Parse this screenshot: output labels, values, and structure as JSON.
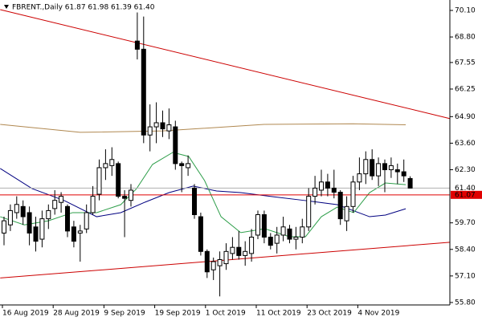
{
  "chart_data": {
    "type": "candlestick",
    "title": "FBRENT.,Daily  61.87 61.98 61.39 61.40",
    "categories": [
      "16 Aug 2019",
      null,
      null,
      null,
      null,
      null,
      null,
      null,
      "28 Aug 2019",
      null,
      null,
      null,
      null,
      null,
      null,
      null,
      "9 Sep 2019",
      null,
      null,
      null,
      null,
      null,
      null,
      null,
      "19 Sep 2019",
      null,
      null,
      null,
      null,
      null,
      null,
      null,
      "1 Oct 2019",
      null,
      null,
      null,
      null,
      null,
      null,
      null,
      "11 Oct 2019",
      null,
      null,
      null,
      null,
      null,
      null,
      null,
      "23 Oct 2019",
      null,
      null,
      null,
      null,
      null,
      null,
      null,
      "4 Nov 2019",
      null,
      null,
      null,
      null,
      null,
      null,
      null,
      null
    ],
    "open": [
      59.2,
      59.6,
      60.2,
      60.5,
      60.2,
      59.5,
      58.9,
      59.9,
      60.4,
      60.7,
      60.5,
      59.5,
      59.2,
      59.4,
      60.2,
      61.1,
      62.4,
      62.5,
      62.6,
      61.0,
      60.8,
      68.6,
      68.2,
      64.0,
      64.4,
      64.6,
      64.2,
      64.4,
      62.6,
      62.4,
      61.4,
      60.0,
      58.3,
      57.4,
      57.6,
      57.7,
      58.2,
      58.5,
      58.1,
      58.2,
      59.1,
      60.1,
      59.0,
      58.7,
      59.1,
      59.4,
      58.9,
      59.0,
      59.5,
      61.0,
      61.3,
      61.7,
      61.4,
      61.2,
      59.8,
      60.5,
      61.7,
      62.1,
      62.8,
      62.0,
      62.6,
      62.3,
      62.3,
      62.2,
      61.87
    ],
    "high": [
      60.0,
      60.6,
      61.0,
      60.8,
      60.5,
      60.0,
      60.3,
      60.6,
      61.3,
      61.2,
      60.6,
      59.8,
      59.6,
      60.6,
      61.5,
      62.8,
      63.3,
      63.4,
      62.7,
      61.3,
      61.6,
      70.0,
      69.8,
      65.5,
      65.6,
      65.2,
      65.3,
      64.7,
      62.7,
      63.0,
      61.6,
      60.2,
      58.4,
      58.0,
      58.3,
      58.7,
      59.0,
      59.3,
      58.8,
      59.4,
      60.3,
      60.3,
      59.2,
      59.5,
      60.0,
      59.6,
      59.5,
      59.9,
      61.4,
      62.0,
      62.3,
      62.1,
      62.3,
      61.3,
      61.0,
      62.0,
      62.9,
      63.2,
      63.3,
      62.9,
      62.8,
      62.9,
      62.6,
      62.8,
      61.98
    ],
    "low": [
      58.6,
      59.3,
      59.9,
      59.6,
      58.6,
      58.3,
      58.5,
      59.4,
      60.1,
      60.2,
      59.0,
      58.5,
      57.8,
      59.2,
      60.1,
      60.8,
      61.8,
      62.0,
      60.9,
      59.0,
      60.5,
      67.7,
      63.6,
      63.2,
      63.6,
      63.9,
      63.8,
      62.3,
      61.2,
      62.0,
      59.9,
      58.1,
      57.0,
      56.9,
      56.1,
      57.4,
      57.9,
      57.9,
      57.6,
      57.8,
      58.9,
      58.7,
      58.4,
      58.2,
      58.8,
      58.7,
      58.4,
      58.7,
      59.3,
      60.6,
      61.0,
      61.0,
      60.9,
      59.6,
      59.3,
      60.2,
      61.3,
      61.6,
      61.8,
      61.5,
      61.2,
      61.9,
      61.6,
      61.7,
      61.39
    ],
    "close": [
      59.8,
      60.3,
      60.6,
      60.0,
      59.2,
      58.8,
      59.9,
      60.3,
      60.8,
      61.0,
      59.3,
      58.8,
      59.3,
      60.2,
      61.0,
      62.4,
      62.6,
      62.8,
      61.0,
      60.9,
      61.3,
      68.2,
      64.0,
      64.4,
      64.6,
      64.3,
      64.5,
      62.6,
      62.5,
      62.6,
      60.1,
      58.3,
      57.3,
      57.8,
      57.9,
      58.3,
      58.5,
      58.1,
      58.3,
      59.0,
      60.1,
      59.0,
      58.6,
      59.1,
      59.5,
      58.9,
      59.0,
      59.5,
      61.0,
      61.4,
      61.7,
      61.4,
      61.2,
      59.9,
      60.5,
      61.7,
      62.1,
      62.8,
      62.0,
      62.6,
      62.3,
      62.5,
      62.2,
      62.0,
      61.4
    ],
    "lines": [
      {
        "color": "#cc0000",
        "x": [
          -0.6,
          70.3
        ],
        "values": [
          70.14,
          64.8
        ]
      },
      {
        "color": "#cc0000",
        "x": [
          -0.6,
          70.3
        ],
        "values": [
          57.0,
          58.75
        ]
      },
      {
        "color": "#b08850",
        "x": [
          -0.6,
          12,
          25,
          41,
          55,
          63.3
        ],
        "values": [
          64.52,
          64.13,
          64.2,
          64.52,
          64.55,
          64.5
        ]
      },
      {
        "color": "#000080",
        "x": [
          -0.6,
          4.4,
          9.5,
          14.6,
          18.4,
          22.2,
          26,
          29.8,
          33.5,
          37.3,
          42.4,
          47.5,
          52.5,
          57.6,
          60.1,
          63.3
        ],
        "values": [
          62.36,
          61.38,
          60.79,
          60.0,
          60.2,
          60.71,
          61.18,
          61.5,
          61.26,
          61.18,
          60.98,
          60.79,
          60.59,
          60.0,
          60.08,
          60.39
        ]
      },
      {
        "color": "#2e9e4a",
        "x": [
          -0.6,
          3.2,
          7,
          10.8,
          14.6,
          18.4,
          20.9,
          23.4,
          26.6,
          29.1,
          31.6,
          34.2,
          37.3,
          41.1,
          45,
          47.5,
          50,
          52.5,
          55.1,
          57.6,
          60.1,
          63.3
        ],
        "values": [
          60.0,
          59.6,
          59.8,
          60.2,
          60.2,
          60.59,
          61.38,
          62.56,
          63.15,
          62.95,
          61.77,
          60.0,
          59.22,
          59.41,
          59.02,
          59.02,
          60.0,
          60.47,
          60.2,
          61.18,
          61.65,
          61.57
        ]
      }
    ],
    "price_lines": [
      {
        "value": 61.4,
        "label": "61.40",
        "color": "#b0b0b0"
      },
      {
        "value": 61.07,
        "label": "61.07",
        "color": "#e00000"
      }
    ],
    "ylim": [
      55.68,
      70.61
    ],
    "yticks": [
      {
        "value": 70.1,
        "label": "70.10"
      },
      {
        "value": 68.8,
        "label": "68.80"
      },
      {
        "value": 67.55,
        "label": "67.55"
      },
      {
        "value": 66.25,
        "label": "66.25"
      },
      {
        "value": 64.9,
        "label": "64.90"
      },
      {
        "value": 63.6,
        "label": "63.60"
      },
      {
        "value": 62.3,
        "label": "62.30"
      },
      {
        "value": 59.7,
        "label": "59.70"
      },
      {
        "value": 58.4,
        "label": "58.40"
      },
      {
        "value": 57.1,
        "label": "57.10"
      },
      {
        "value": 55.8,
        "label": "55.80"
      }
    ]
  }
}
